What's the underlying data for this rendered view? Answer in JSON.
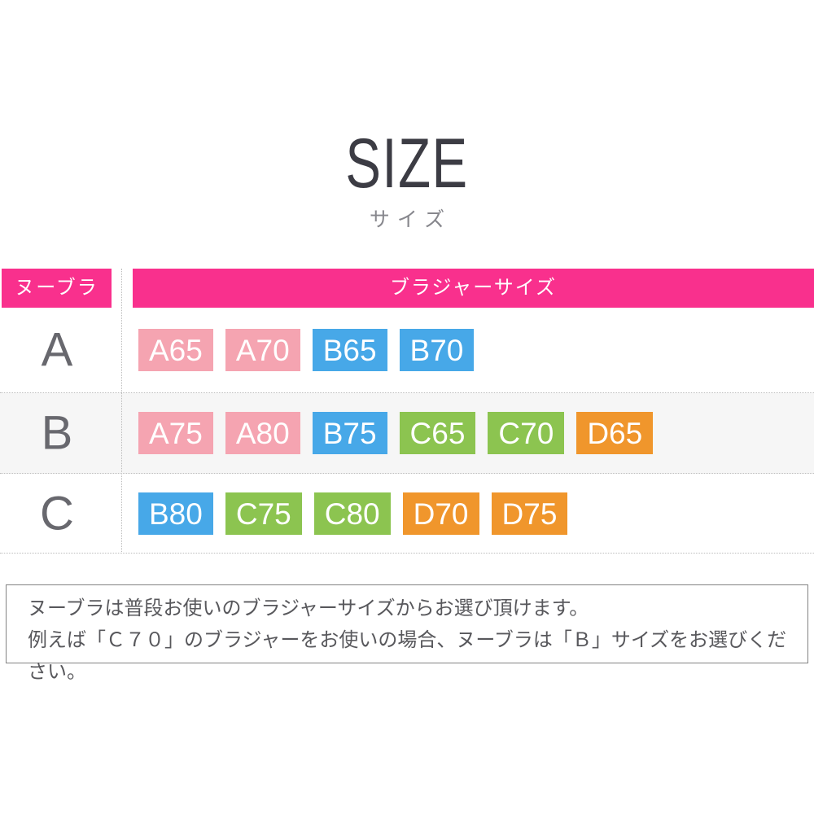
{
  "title": {
    "main": "SIZE",
    "sub": "サイズ"
  },
  "colors": {
    "header": "#f9308d",
    "pink": "#f5a4b1",
    "blue": "#47a8e8",
    "green": "#8cc450",
    "orange": "#f0962c",
    "row_alt_bg": "#f6f6f6"
  },
  "table": {
    "left_header": "ヌーブラ",
    "right_header": "ブラジャーサイズ",
    "rows": [
      {
        "nubra_size": "A",
        "badges": [
          {
            "label": "A65",
            "color": "pink"
          },
          {
            "label": "A70",
            "color": "pink"
          },
          {
            "label": "B65",
            "color": "blue"
          },
          {
            "label": "B70",
            "color": "blue"
          }
        ]
      },
      {
        "nubra_size": "B",
        "badges": [
          {
            "label": "A75",
            "color": "pink"
          },
          {
            "label": "A80",
            "color": "pink"
          },
          {
            "label": "B75",
            "color": "blue"
          },
          {
            "label": "C65",
            "color": "green"
          },
          {
            "label": "C70",
            "color": "green"
          },
          {
            "label": "D65",
            "color": "orange"
          }
        ]
      },
      {
        "nubra_size": "C",
        "badges": [
          {
            "label": "B80",
            "color": "blue"
          },
          {
            "label": "C75",
            "color": "green"
          },
          {
            "label": "C80",
            "color": "green"
          },
          {
            "label": "D70",
            "color": "orange"
          },
          {
            "label": "D75",
            "color": "orange"
          }
        ]
      }
    ]
  },
  "note": {
    "line1": "ヌーブラは普段お使いのブラジャーサイズからお選び頂けます。",
    "line2": "例えば「Ｃ７０」のブラジャーをお使いの場合、ヌーブラは「Ｂ」サイズをお選びください。"
  }
}
